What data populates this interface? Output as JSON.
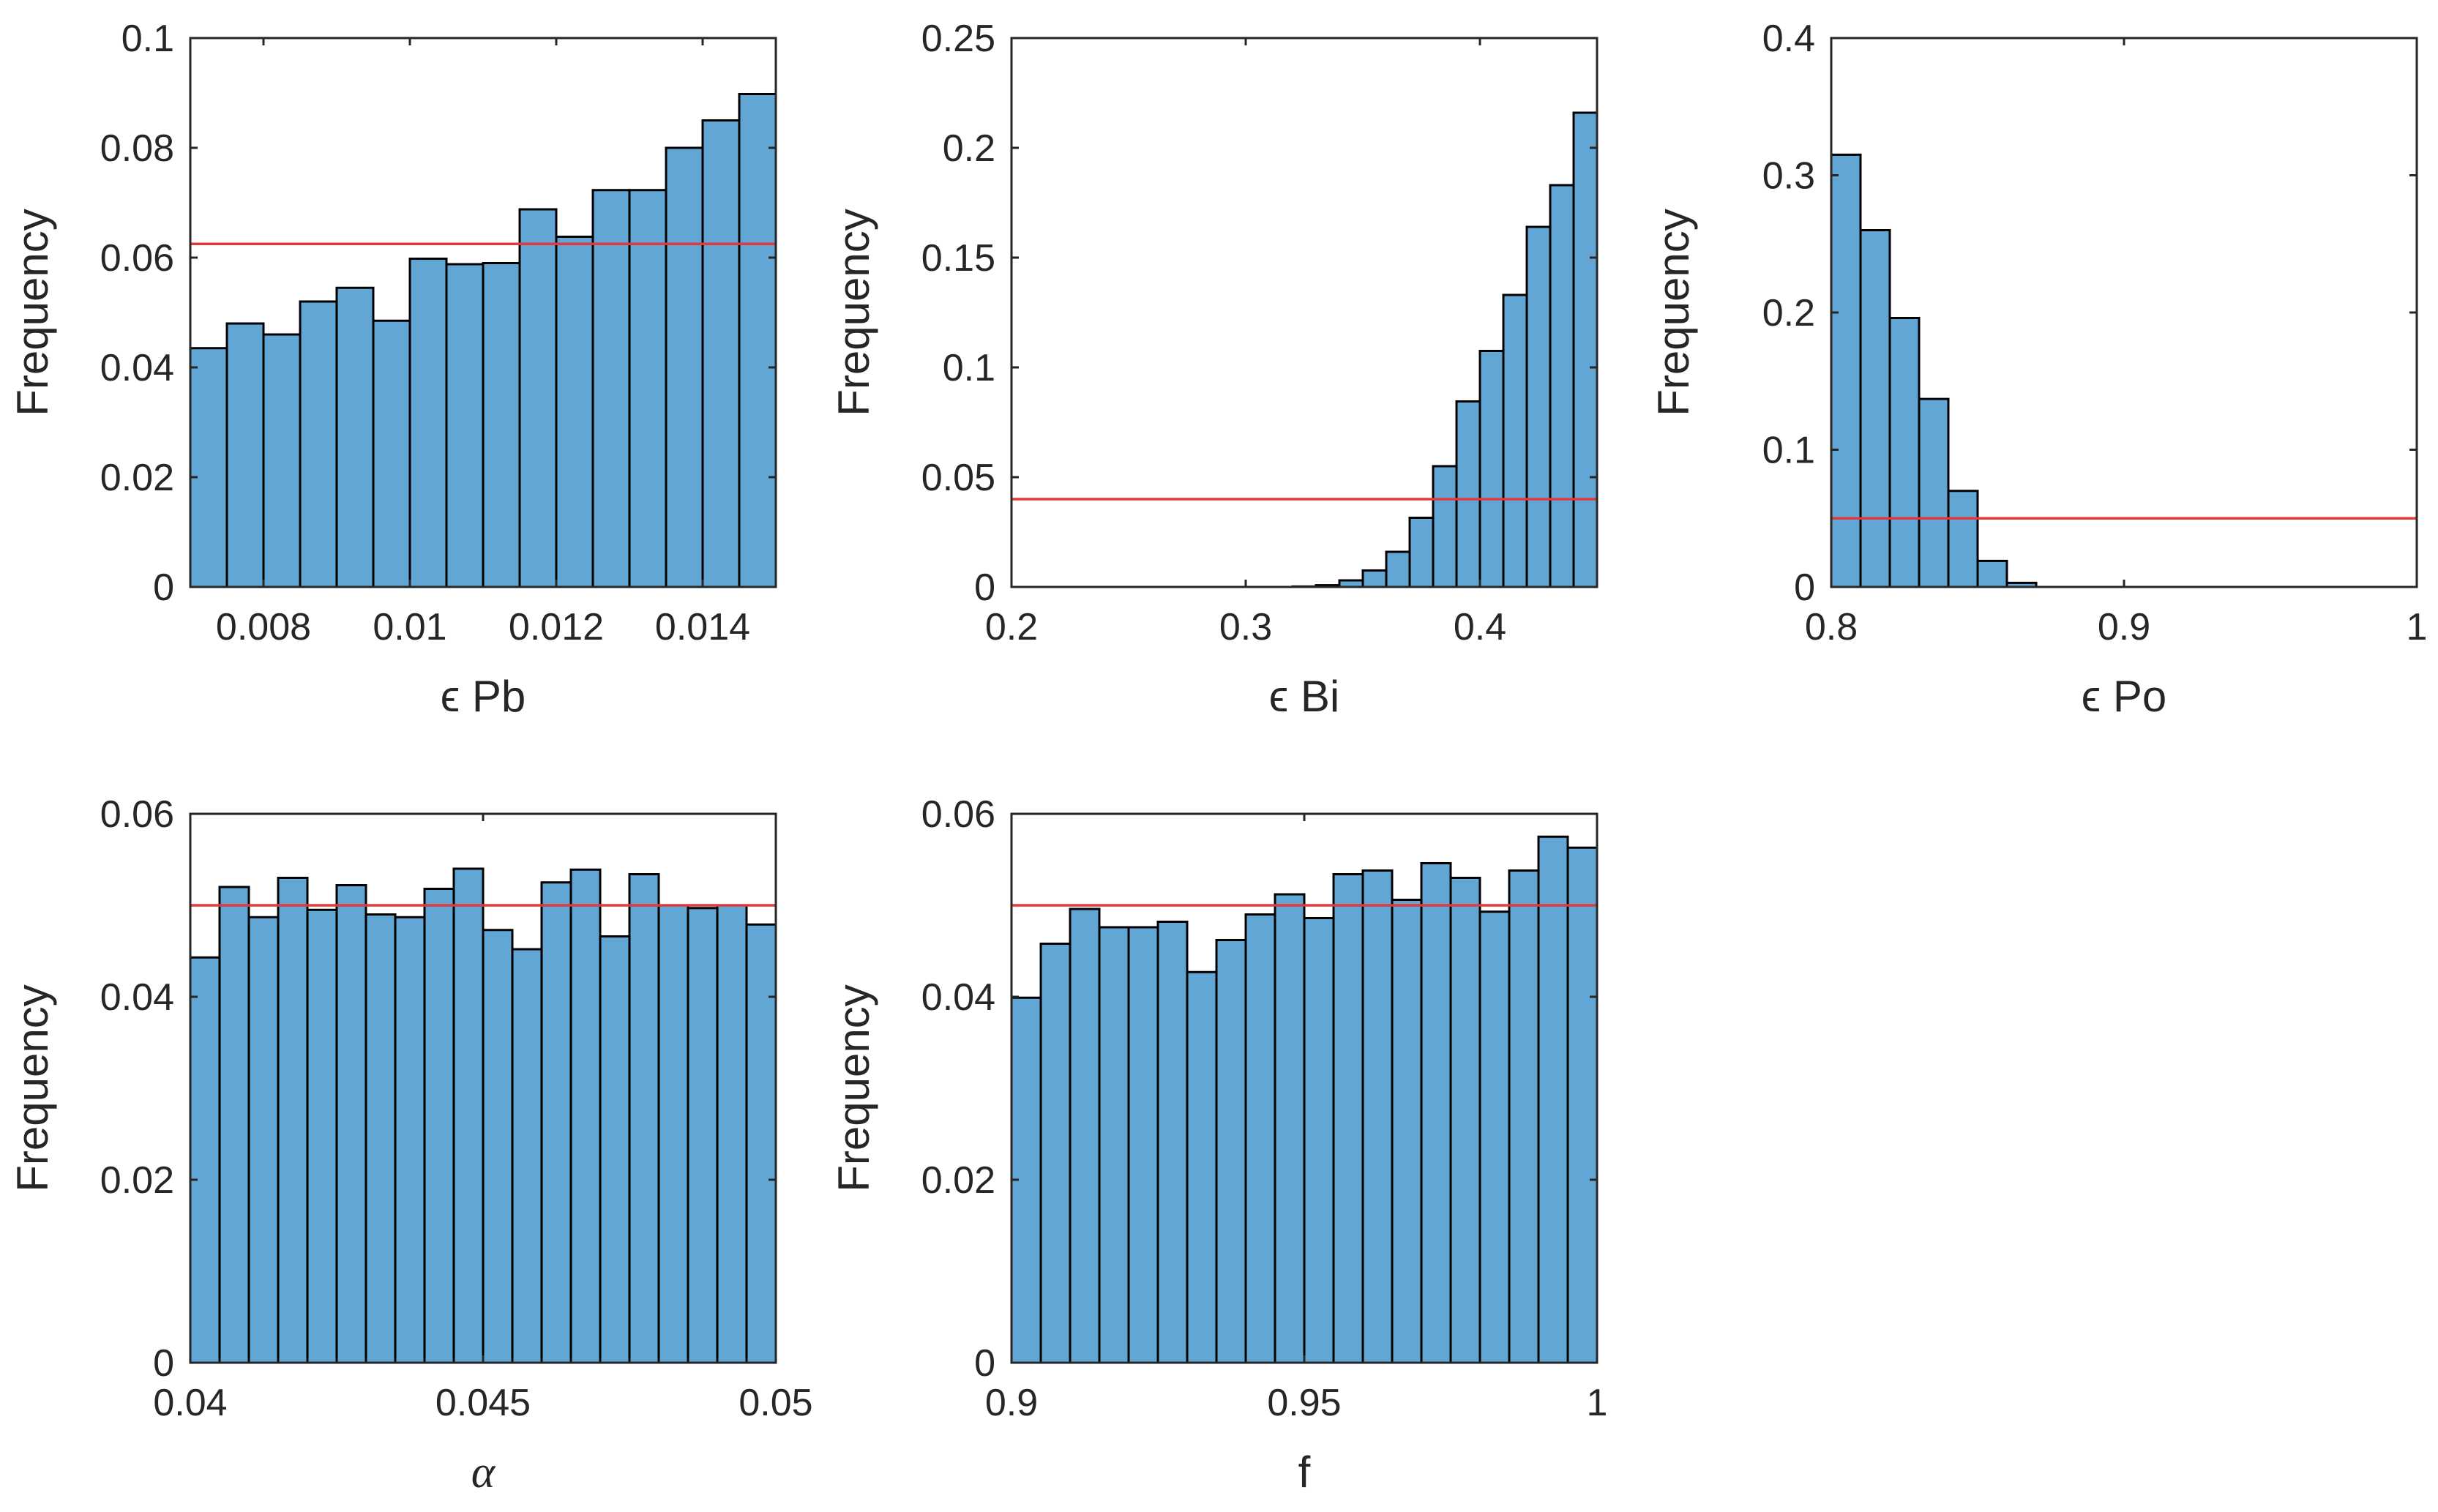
{
  "chart_data": [
    {
      "type": "bar",
      "subtype": "histogram",
      "xlabel": "ϵ Pb",
      "ylabel": "Frequency",
      "xlim": [
        0.007,
        0.015
      ],
      "ylim": [
        0,
        0.1
      ],
      "xticks": [
        0.008,
        0.01,
        0.012,
        0.014
      ],
      "xtick_labels": [
        "0.008",
        "0.01",
        "0.012",
        "0.014"
      ],
      "yticks": [
        0,
        0.02,
        0.04,
        0.06,
        0.08,
        0.1
      ],
      "ytick_labels": [
        "0",
        "0.02",
        "0.04",
        "0.06",
        "0.08",
        "0.1"
      ],
      "bin_edges": [
        0.007,
        0.0075,
        0.008,
        0.0085,
        0.009,
        0.0095,
        0.01,
        0.0105,
        0.011,
        0.0115,
        0.012,
        0.0125,
        0.013,
        0.0135,
        0.014,
        0.0145,
        0.015
      ],
      "values": [
        0.0435,
        0.048,
        0.046,
        0.052,
        0.0545,
        0.0485,
        0.0598,
        0.0588,
        0.059,
        0.0688,
        0.0638,
        0.0723,
        0.0723,
        0.08,
        0.085,
        0.0898
      ],
      "reference_line": 0.0625,
      "colors": {
        "bar": "#62a6d6",
        "edge": "#000000",
        "reference": "#e23a3a"
      }
    },
    {
      "type": "bar",
      "subtype": "histogram",
      "xlabel": "ϵ Bi",
      "ylabel": "Frequency",
      "xlim": [
        0.2,
        0.45
      ],
      "ylim": [
        0,
        0.25
      ],
      "xticks": [
        0.2,
        0.3,
        0.4
      ],
      "xtick_labels": [
        "0.2",
        "0.3",
        "0.4"
      ],
      "yticks": [
        0,
        0.05,
        0.1,
        0.15,
        0.2,
        0.25
      ],
      "ytick_labels": [
        "0",
        "0.05",
        "0.1",
        "0.15",
        "0.2",
        "0.25"
      ],
      "bin_edges": [
        0.2,
        0.21,
        0.22,
        0.23,
        0.24,
        0.25,
        0.26,
        0.27,
        0.28,
        0.29,
        0.3,
        0.31,
        0.32,
        0.33,
        0.34,
        0.35,
        0.36,
        0.37,
        0.38,
        0.39,
        0.4,
        0.41,
        0.42,
        0.43,
        0.44,
        0.45
      ],
      "values": [
        0,
        0,
        0,
        0,
        0,
        0,
        0,
        0,
        0,
        0,
        0,
        0,
        0.0002,
        0.0008,
        0.003,
        0.0075,
        0.016,
        0.0315,
        0.055,
        0.0845,
        0.1075,
        0.133,
        0.164,
        0.183,
        0.216
      ],
      "reference_line": 0.04,
      "colors": {
        "bar": "#62a6d6",
        "edge": "#000000",
        "reference": "#e23a3a"
      }
    },
    {
      "type": "bar",
      "subtype": "histogram",
      "xlabel": "ϵ Po",
      "ylabel": "Frequency",
      "xlim": [
        0.8,
        1
      ],
      "ylim": [
        0,
        0.4
      ],
      "xticks": [
        0.8,
        0.9,
        1
      ],
      "xtick_labels": [
        "0.8",
        "0.9",
        "1"
      ],
      "yticks": [
        0,
        0.1,
        0.2,
        0.3,
        0.4
      ],
      "ytick_labels": [
        "0",
        "0.1",
        "0.2",
        "0.3",
        "0.4"
      ],
      "bin_edges": [
        0.8,
        0.81,
        0.82,
        0.83,
        0.84,
        0.85,
        0.86,
        0.87,
        0.88,
        0.89,
        0.9,
        0.91,
        0.92,
        0.93,
        0.94,
        0.95,
        0.96,
        0.97,
        0.98,
        0.99,
        1.0
      ],
      "values": [
        0.315,
        0.26,
        0.196,
        0.137,
        0.07,
        0.019,
        0.003,
        0,
        0,
        0,
        0,
        0,
        0,
        0,
        0,
        0,
        0,
        0,
        0,
        0
      ],
      "reference_line": 0.05,
      "colors": {
        "bar": "#62a6d6",
        "edge": "#000000",
        "reference": "#e23a3a"
      }
    },
    {
      "type": "bar",
      "subtype": "histogram",
      "xlabel": "α",
      "xlabel_style": "math",
      "ylabel": "Frequency",
      "xlim": [
        0.04,
        0.05
      ],
      "ylim": [
        0,
        0.06
      ],
      "xticks": [
        0.04,
        0.045,
        0.05
      ],
      "xtick_labels": [
        "0.04",
        "0.045",
        "0.05"
      ],
      "yticks": [
        0,
        0.02,
        0.04,
        0.06
      ],
      "ytick_labels": [
        "0",
        "0.02",
        "0.04",
        "0.06"
      ],
      "bin_edges": [
        0.04,
        0.0405,
        0.041,
        0.0415,
        0.042,
        0.0425,
        0.043,
        0.0435,
        0.044,
        0.0445,
        0.045,
        0.0455,
        0.046,
        0.0465,
        0.047,
        0.0475,
        0.048,
        0.0485,
        0.049,
        0.0495,
        0.05
      ],
      "values": [
        0.0443,
        0.052,
        0.0487,
        0.053,
        0.0495,
        0.0522,
        0.049,
        0.0487,
        0.0518,
        0.054,
        0.0473,
        0.0452,
        0.0525,
        0.0539,
        0.0466,
        0.0534,
        0.05,
        0.0497,
        0.05,
        0.0479
      ],
      "reference_line": 0.05,
      "colors": {
        "bar": "#62a6d6",
        "edge": "#000000",
        "reference": "#e23a3a"
      }
    },
    {
      "type": "bar",
      "subtype": "histogram",
      "xlabel": "f",
      "ylabel": "Frequency",
      "xlim": [
        0.9,
        1
      ],
      "ylim": [
        0,
        0.06
      ],
      "xticks": [
        0.9,
        0.95,
        1
      ],
      "xtick_labels": [
        "0.9",
        "0.95",
        "1"
      ],
      "yticks": [
        0,
        0.02,
        0.04,
        0.06
      ],
      "ytick_labels": [
        "0",
        "0.02",
        "0.04",
        "0.06"
      ],
      "bin_edges": [
        0.9,
        0.905,
        0.91,
        0.915,
        0.92,
        0.925,
        0.93,
        0.935,
        0.94,
        0.945,
        0.95,
        0.955,
        0.96,
        0.965,
        0.97,
        0.975,
        0.98,
        0.985,
        0.99,
        0.995,
        1.0
      ],
      "values": [
        0.0399,
        0.0458,
        0.0496,
        0.0476,
        0.0476,
        0.0482,
        0.0427,
        0.0462,
        0.049,
        0.0512,
        0.0486,
        0.0534,
        0.0538,
        0.0506,
        0.0546,
        0.053,
        0.0493,
        0.0538,
        0.0575,
        0.0563
      ],
      "reference_line": 0.05,
      "colors": {
        "bar": "#62a6d6",
        "edge": "#000000",
        "reference": "#e23a3a"
      }
    }
  ]
}
